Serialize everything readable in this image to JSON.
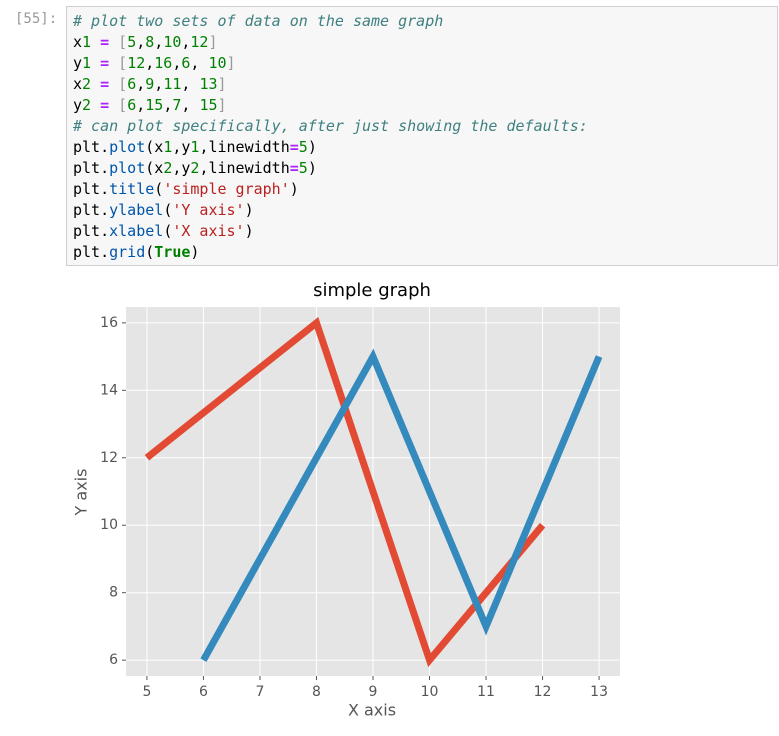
{
  "cell": {
    "prompt": "[55]:",
    "lines": [
      "# plot two sets of data on the same graph",
      "x1 = [5,8,10,12]",
      "y1 = [12,16,6, 10]",
      "x2 = [6,9,11, 13]",
      "y2 = [6,15,7, 15]",
      "# can plot specifically, after just showing the defaults:",
      "plt.plot(x1,y1,linewidth=5)",
      "plt.plot(x2,y2,linewidth=5)",
      "plt.title('simple graph')",
      "plt.ylabel('Y axis')",
      "plt.xlabel('X axis')",
      "plt.grid(True)"
    ]
  },
  "chart_data": {
    "type": "line",
    "title": "simple graph",
    "x_label": "X axis",
    "y_label": "Y axis",
    "series": [
      {
        "color": "#E24A33",
        "x": [
          5,
          8,
          10,
          12
        ],
        "values": [
          12,
          16,
          6,
          10
        ]
      },
      {
        "color": "#348ABD",
        "x": [
          6,
          9,
          11,
          13
        ],
        "values": [
          6,
          15,
          7,
          15
        ]
      }
    ],
    "xlim": [
      4.63,
      13.37
    ],
    "ylim": [
      5.53,
      16.47
    ],
    "xticks": [
      5,
      6,
      7,
      8,
      9,
      10,
      11,
      12,
      13
    ],
    "yticks": [
      6,
      8,
      10,
      12,
      14,
      16
    ],
    "grid": true,
    "line_width": 5
  }
}
